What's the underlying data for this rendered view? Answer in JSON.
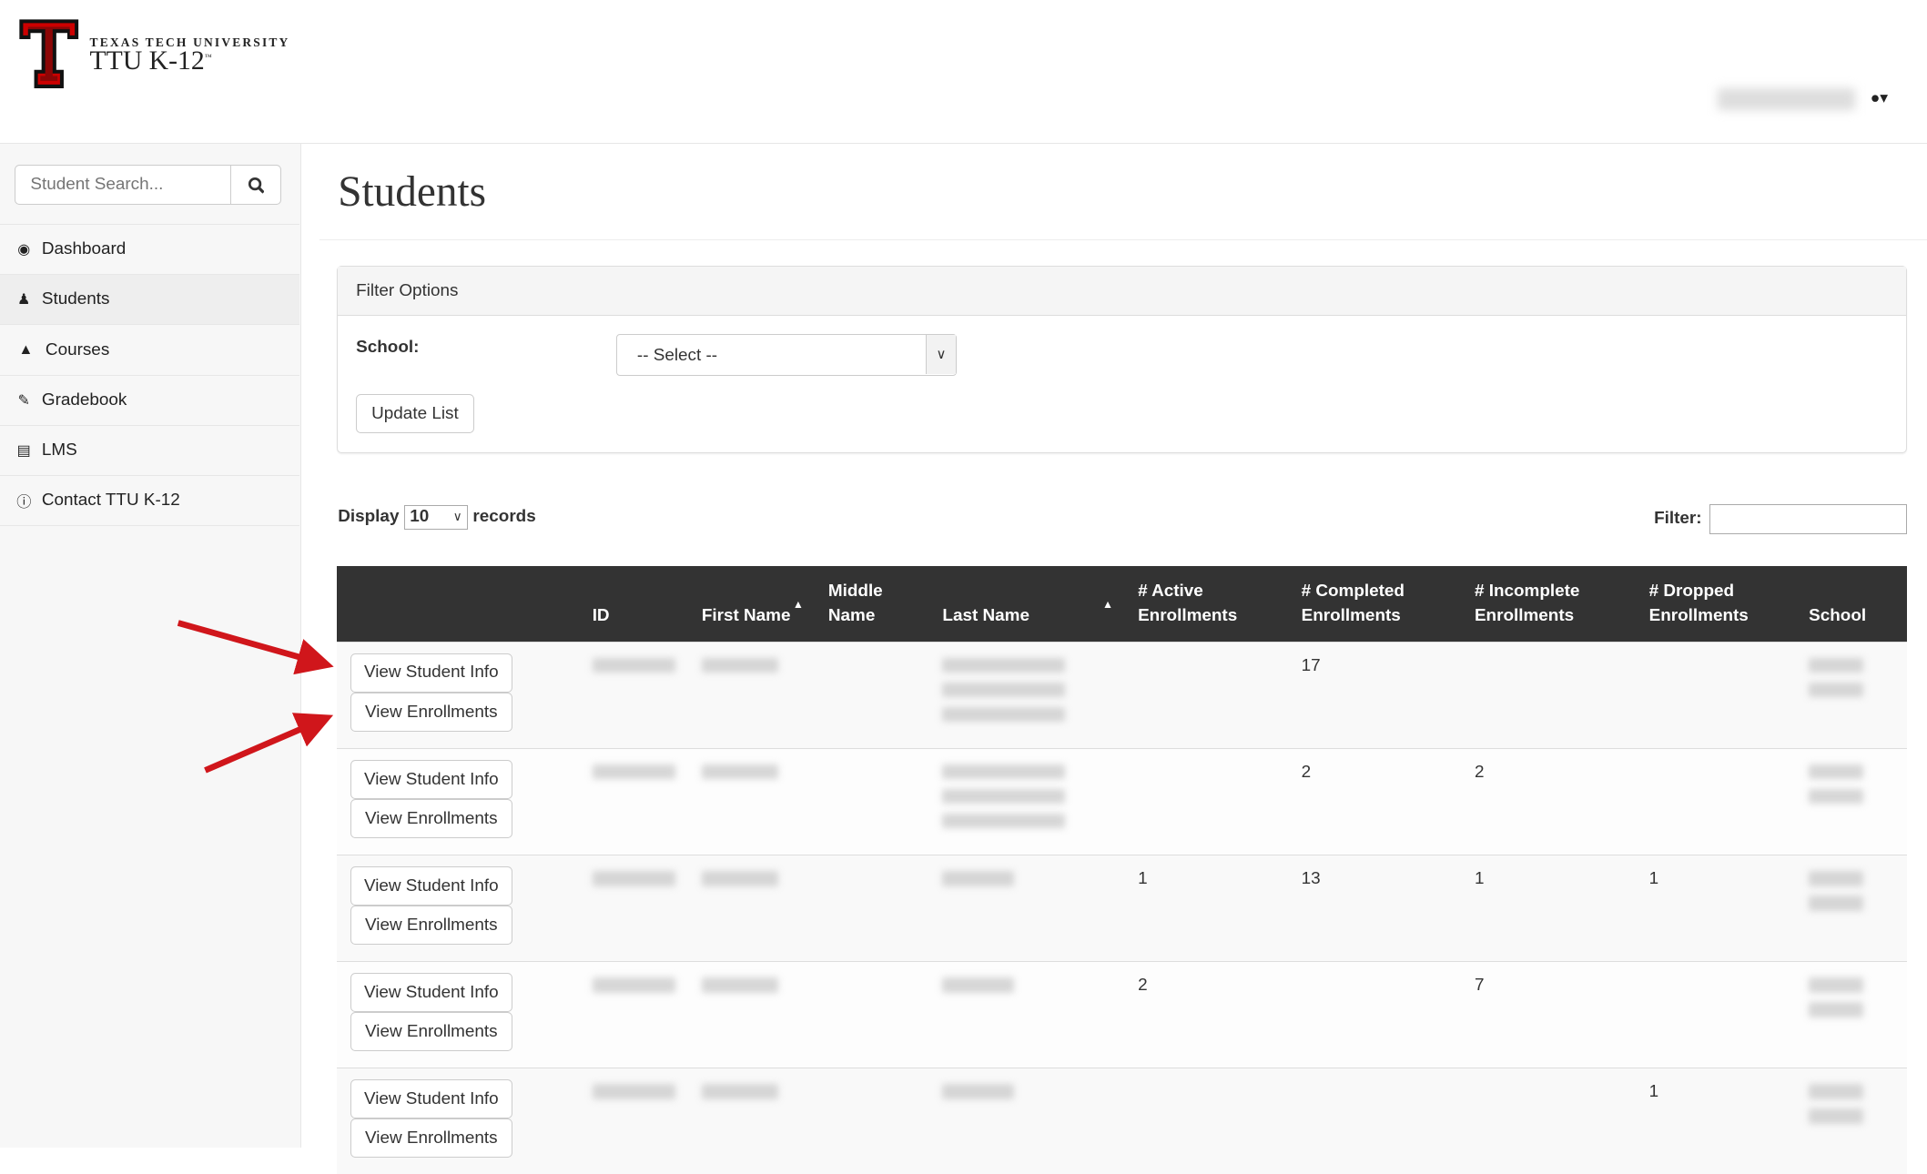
{
  "header": {
    "brand_top": "TEXAS TECH UNIVERSITY",
    "brand_name": "TTU K-12",
    "brand_tm": "™",
    "user_icon": "user-icon"
  },
  "sidebar": {
    "search_placeholder": "Student Search...",
    "items": [
      {
        "label": "Dashboard",
        "icon": "dashboard-icon"
      },
      {
        "label": "Students",
        "icon": "users-icon",
        "active": true
      },
      {
        "label": "Courses",
        "icon": "graduation-cap-icon"
      },
      {
        "label": "Gradebook",
        "icon": "pencil-icon"
      },
      {
        "label": "LMS",
        "icon": "desktop-icon"
      },
      {
        "label": "Contact TTU K-12",
        "icon": "info-circle-icon"
      }
    ]
  },
  "main": {
    "title": "Students",
    "filter_panel": {
      "heading": "Filter Options",
      "school_label": "School:",
      "school_value": "-- Select --",
      "update_button": "Update List"
    },
    "display": {
      "prefix": "Display",
      "value": "10",
      "suffix": "records"
    },
    "filter_label": "Filter:",
    "table": {
      "headers": {
        "id": "ID",
        "first_name": "First Name",
        "middle_name": "Middle Name",
        "last_name": "Last Name",
        "active": "# Active Enrollments",
        "completed": "# Completed Enrollments",
        "incomplete": "# Incomplete Enrollments",
        "dropped": "# Dropped Enrollments",
        "school": "School"
      },
      "view_info_label": "View Student Info",
      "view_enrollments_label": "View Enrollments",
      "rows": [
        {
          "active": "",
          "completed": "17",
          "incomplete": "",
          "dropped": ""
        },
        {
          "active": "",
          "completed": "2",
          "incomplete": "2",
          "dropped": ""
        },
        {
          "active": "1",
          "completed": "13",
          "incomplete": "1",
          "dropped": "1"
        },
        {
          "active": "2",
          "completed": "",
          "incomplete": "7",
          "dropped": ""
        },
        {
          "active": "",
          "completed": "",
          "incomplete": "",
          "dropped": "1"
        }
      ]
    }
  },
  "colors": {
    "header_bg": "#333333",
    "annotation_arrow": "#d0161b",
    "logo_red": "#cc0000"
  }
}
